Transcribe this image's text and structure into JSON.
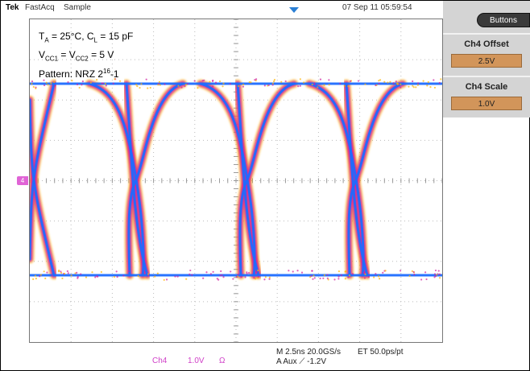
{
  "header": {
    "brand": "Tek",
    "acq_mode": "FastAcq",
    "acq_type": "Sample",
    "timestamp": "07 Sep 11 05:59:54"
  },
  "annotations": {
    "ta": "25",
    "ta_unit": "°C",
    "cl": "15 pF",
    "vcc": "5 V",
    "pattern_base": "NRZ 2",
    "pattern_exp": "16",
    "pattern_tail": "-1"
  },
  "side_panel": {
    "buttons_label": "Buttons",
    "offset_title": "Ch4 Offset",
    "offset_value": "2.5V",
    "scale_title": "Ch4 Scale",
    "scale_value": "1.0V"
  },
  "channel_marker": "4",
  "readouts": {
    "channel": "Ch4",
    "scale": "1.0V",
    "ohm": "Ω",
    "timebase": "M 2.5ns 20.0GS/s",
    "record": "ET 50.0ps/pt",
    "trigger": "A  Aux  ⟋  -1.2V"
  },
  "colors": {
    "trace_core": "#1e6bff",
    "trace_mid": "#d020a0",
    "trace_edge": "#ffb400",
    "channel": "#d040c8",
    "menu_value_bg": "#d2955a"
  }
}
